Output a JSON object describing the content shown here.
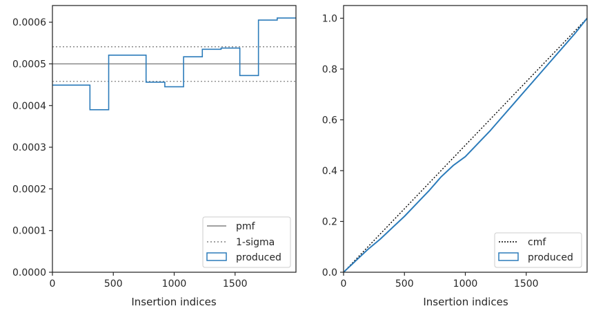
{
  "colors": {
    "produced": "#2b7bba",
    "pmf": "#808080",
    "sigma": "#808080",
    "cmf": "#000000",
    "axes": "#262626"
  },
  "chart_data": [
    {
      "type": "histogram-step",
      "xlabel": "Insertion indices",
      "ylabel": "",
      "xlim": [
        0,
        2000
      ],
      "ylim": [
        0,
        0.00064
      ],
      "xticks": [
        0,
        500,
        1000,
        1500
      ],
      "xtick_labels": [
        "0",
        "500",
        "1000",
        "1500"
      ],
      "yticks": [
        0,
        0.0001,
        0.0002,
        0.0003,
        0.0004,
        0.0005,
        0.0006
      ],
      "ytick_labels": [
        "0.0000",
        "0.0001",
        "0.0002",
        "0.0003",
        "0.0004",
        "0.0005",
        "0.0006"
      ],
      "legend_position": "lower-right",
      "pmf": 0.0005,
      "sigma_band": [
        0.000458,
        0.000541
      ],
      "legend": [
        "pmf",
        "1-sigma",
        "produced"
      ],
      "bin_edges": [
        0,
        308,
        462,
        769,
        923,
        1077,
        1231,
        1385,
        1539,
        1692,
        1846,
        2000
      ],
      "produced": [
        0.000449,
        0.00039,
        0.000521,
        0.000456,
        0.000445,
        0.000517,
        0.000535,
        0.000538,
        0.000472,
        0.000605,
        0.00061
      ]
    },
    {
      "type": "line",
      "xlabel": "Insertion indices",
      "ylabel": "",
      "xlim": [
        0,
        2000
      ],
      "ylim": [
        0,
        1.05
      ],
      "xticks": [
        0,
        500,
        1000,
        1500
      ],
      "xtick_labels": [
        "0",
        "500",
        "1000",
        "1500"
      ],
      "yticks": [
        0,
        0.2,
        0.4,
        0.6,
        0.8,
        1.0
      ],
      "ytick_labels": [
        "0.0",
        "0.2",
        "0.4",
        "0.6",
        "0.8",
        "1.0"
      ],
      "legend_position": "lower-right",
      "legend": [
        "cmf",
        "produced"
      ],
      "cmf": {
        "x": [
          0,
          2000
        ],
        "y": [
          0,
          1.0
        ]
      },
      "produced": {
        "x": [
          0,
          100,
          200,
          300,
          400,
          500,
          600,
          700,
          800,
          900,
          1000,
          1100,
          1200,
          1300,
          1400,
          1500,
          1600,
          1700,
          1800,
          1900,
          2000
        ],
        "y": [
          0,
          0.045,
          0.09,
          0.13,
          0.175,
          0.22,
          0.27,
          0.32,
          0.375,
          0.42,
          0.455,
          0.505,
          0.555,
          0.61,
          0.665,
          0.72,
          0.775,
          0.83,
          0.885,
          0.94,
          1.0
        ]
      }
    }
  ]
}
